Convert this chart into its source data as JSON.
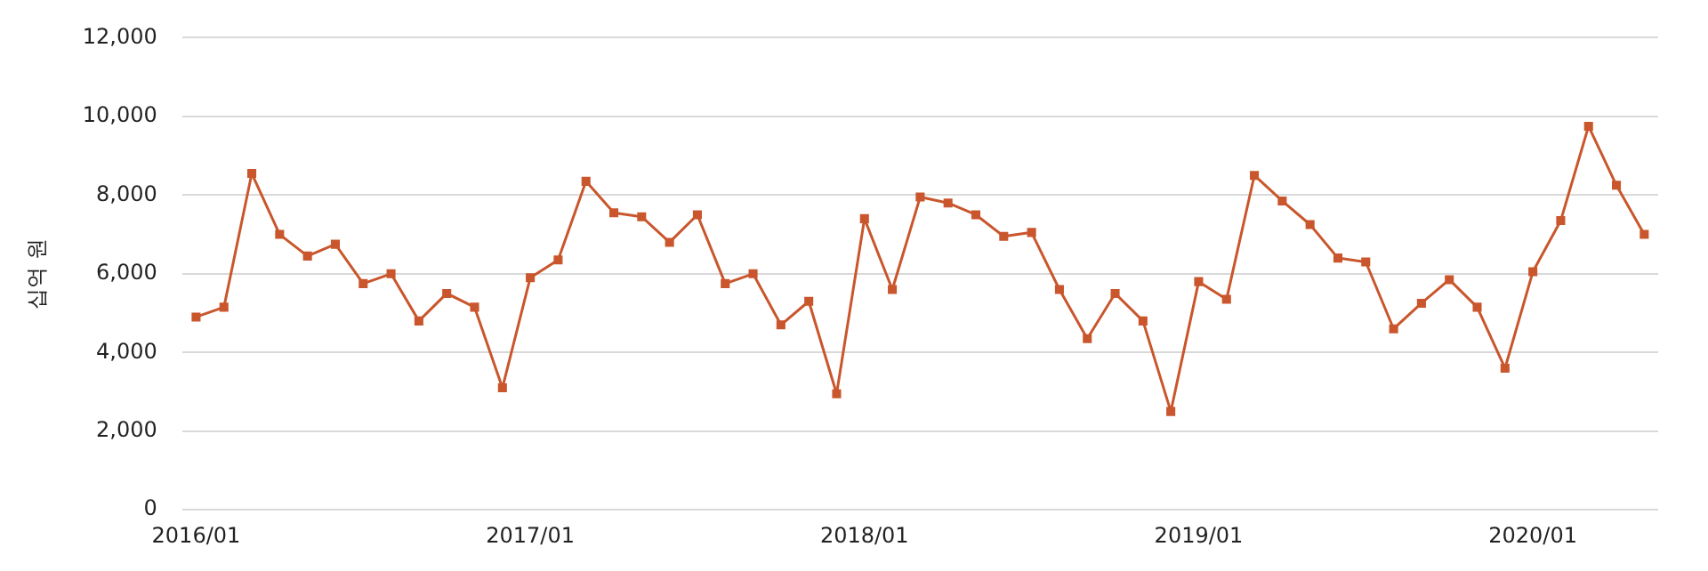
{
  "chart_data": {
    "type": "line",
    "ylabel": "십억 원",
    "categories": [
      "2016/01",
      null,
      null,
      null,
      null,
      null,
      null,
      null,
      null,
      null,
      null,
      null,
      "2017/01",
      null,
      null,
      null,
      null,
      null,
      null,
      null,
      null,
      null,
      null,
      null,
      "2018/01",
      null,
      null,
      null,
      null,
      null,
      null,
      null,
      null,
      null,
      null,
      null,
      "2019/01",
      null,
      null,
      null,
      null,
      null,
      null,
      null,
      null,
      null,
      null,
      null,
      "2020/01",
      null,
      null,
      null,
      null
    ],
    "series": [
      {
        "color": "#c9562c",
        "values": [
          4900,
          5150,
          8550,
          7000,
          6450,
          6750,
          5750,
          6000,
          4800,
          5500,
          5150,
          3100,
          5900,
          6350,
          8350,
          7550,
          7450,
          6800,
          7500,
          5750,
          6000,
          4700,
          5300,
          2950,
          7400,
          5600,
          7950,
          7800,
          7500,
          6950,
          7050,
          5600,
          4350,
          5500,
          4800,
          2500,
          5800,
          5350,
          8500,
          7850,
          7250,
          6400,
          6300,
          4600,
          5250,
          5850,
          5150,
          3600,
          6050,
          7350,
          9750,
          8250,
          7000
        ]
      }
    ],
    "ylim": [
      0,
      12000
    ],
    "yticks": [
      0,
      {
        "value": 2000,
        "label": "2,000"
      },
      {
        "value": 4000,
        "label": "4,000"
      },
      {
        "value": 6000,
        "label": "6,000"
      },
      {
        "value": 8000,
        "label": "8,000"
      },
      {
        "value": 10000,
        "label": "10,000"
      },
      {
        "value": 12000,
        "label": "12,000"
      }
    ],
    "grid": "y",
    "legend": false,
    "marker": "square",
    "line_style": "solid"
  }
}
